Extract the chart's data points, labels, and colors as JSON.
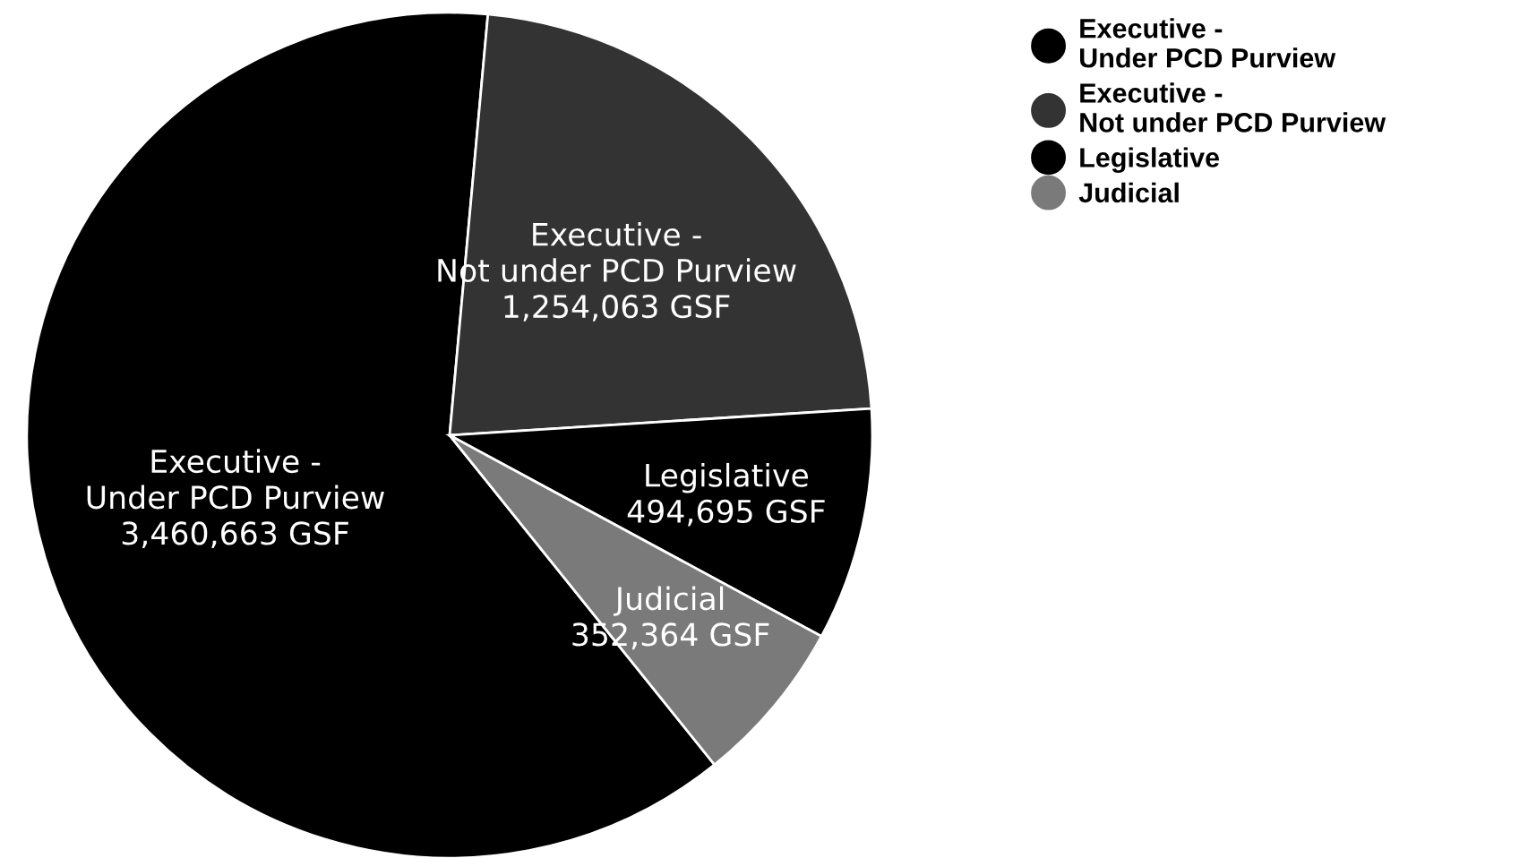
{
  "chart_data": {
    "type": "pie",
    "categories": [
      "Executive -\nUnder PCD Purview",
      "Executive -\nNot under PCD Purview",
      "Legislative",
      "Judicial"
    ],
    "values": [
      3460663,
      1254063,
      494695,
      352364
    ],
    "colors": [
      "#000000",
      "#333333",
      "#000000",
      "#7a7a7a"
    ],
    "value_labels": [
      "3,460,663 GSF",
      "1,254,063 GSF",
      "494,695 GSF",
      "352,364 GSF"
    ],
    "legend": "top right"
  }
}
